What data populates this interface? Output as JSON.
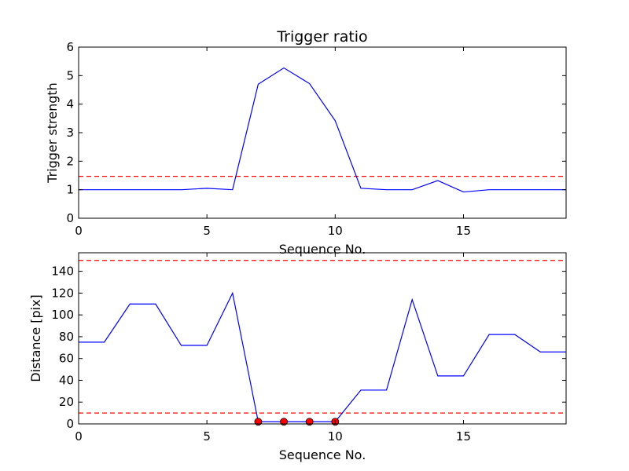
{
  "chart_data": [
    {
      "type": "line",
      "title": "Trigger ratio",
      "xlabel": "Sequence No.",
      "ylabel": "Trigger strength",
      "xlim": [
        0,
        19
      ],
      "ylim": [
        0,
        6
      ],
      "xticks": [
        0,
        5,
        10,
        15
      ],
      "yticks": [
        0,
        1,
        2,
        3,
        4,
        5,
        6
      ],
      "grid": false,
      "series": [
        {
          "color": "#0000ff",
          "style": "solid",
          "x": [
            0,
            1,
            2,
            3,
            4,
            5,
            6,
            7,
            8,
            9,
            10,
            11,
            12,
            13,
            14,
            15,
            16,
            17,
            18,
            19
          ],
          "y": [
            1.0,
            1.0,
            1.0,
            1.0,
            1.0,
            1.05,
            1.0,
            4.7,
            5.27,
            4.72,
            3.42,
            1.05,
            1.0,
            1.0,
            1.32,
            0.92,
            1.0,
            1.0,
            1.0,
            1.0
          ]
        }
      ],
      "hlines": [
        {
          "y": 1.47,
          "color": "#ff0000",
          "style": "dashed"
        }
      ]
    },
    {
      "type": "line",
      "title": "",
      "xlabel": "Sequence No.",
      "ylabel": "Distance [pix]",
      "xlim": [
        0,
        19
      ],
      "ylim": [
        0,
        157
      ],
      "xticks": [
        0,
        5,
        10,
        15
      ],
      "yticks": [
        0,
        20,
        40,
        60,
        80,
        100,
        120,
        140
      ],
      "grid": false,
      "series": [
        {
          "color": "#0000ff",
          "style": "solid",
          "x": [
            0,
            1,
            2,
            3,
            4,
            5,
            6,
            7,
            8,
            9,
            10,
            11,
            12,
            13,
            14,
            15,
            16,
            17,
            18,
            19
          ],
          "y": [
            75,
            75,
            110,
            110,
            72,
            72,
            120,
            2,
            2,
            2,
            2,
            31,
            31,
            114,
            44,
            44,
            82,
            82,
            66,
            66
          ]
        },
        {
          "color": "#ff0000",
          "style": "markers",
          "x": [
            7,
            8,
            9,
            10
          ],
          "y": [
            2,
            2,
            2,
            2
          ]
        }
      ],
      "hlines": [
        {
          "y": 150,
          "color": "#ff0000",
          "style": "dashed"
        },
        {
          "y": 10,
          "color": "#ff0000",
          "style": "dashed"
        }
      ]
    }
  ]
}
